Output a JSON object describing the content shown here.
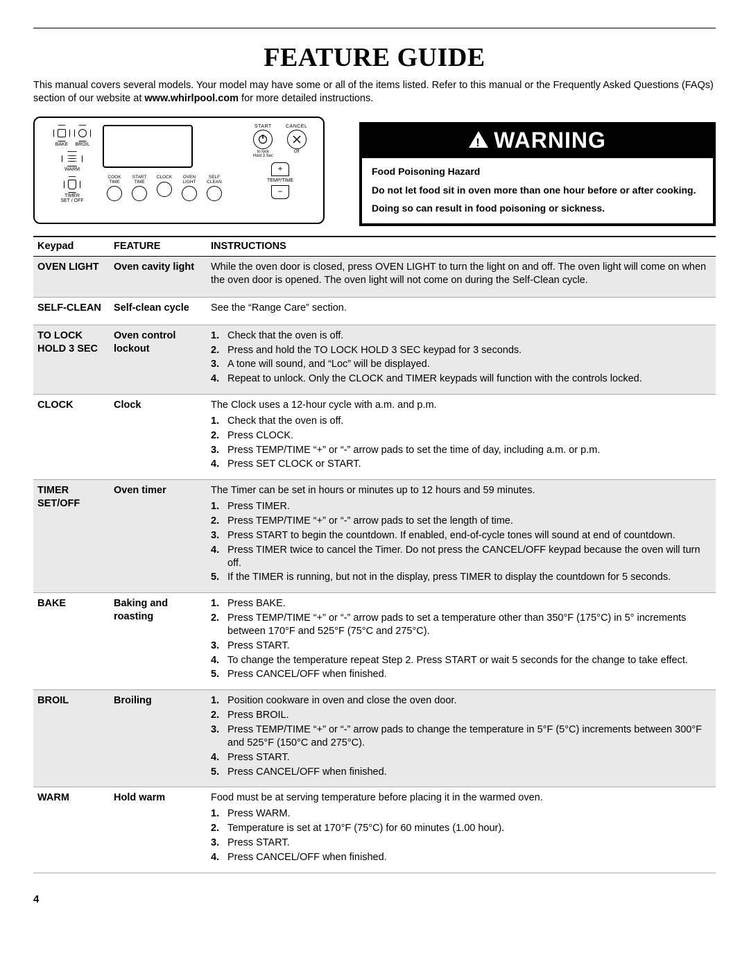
{
  "title": "FEATURE GUIDE",
  "intro_before": "This manual covers several models. Your model may have some or all of the items listed. Refer to this manual or the Frequently Asked Questions (FAQs) section of our website at ",
  "intro_url": "www.whirlpool.com",
  "intro_after": " for more detailed instructions.",
  "panel": {
    "bake": "BAKE",
    "broil": "BROIL",
    "warm": "WARM",
    "timer": "TIMER\nSET / OFF",
    "mids": [
      "COOK\nTIME",
      "START\nTIME",
      "CLOCK",
      "OVEN\nLIGHT",
      "SELF\nCLEAN"
    ],
    "start": "START",
    "cancel": "CANCEL",
    "off": "Off",
    "lock_hint": "to lock\nHold 3 Sec",
    "temptime": "TEMP/TIME"
  },
  "warning": {
    "header": "WARNING",
    "hazard": "Food Poisoning Hazard",
    "line1": "Do not let food sit in oven more than one hour before or after cooking.",
    "line2": "Doing so can result in food poisoning or sickness."
  },
  "thead": {
    "c1": "Keypad",
    "c2": "FEATURE",
    "c3": "INSTRUCTIONS"
  },
  "rows": [
    {
      "shade": true,
      "keypad": "OVEN LIGHT",
      "feature": "Oven cavity light",
      "pre": "While the oven door is closed, press OVEN LIGHT to turn the light on and off. The oven light will come on when the oven door is opened. The oven light will not come on during the Self-Clean cycle.",
      "steps": []
    },
    {
      "shade": false,
      "keypad": "SELF-CLEAN",
      "feature": "Self-clean cycle",
      "pre": "See the “Range Care” section.",
      "steps": []
    },
    {
      "shade": true,
      "keypad": "TO LOCK HOLD 3 SEC",
      "feature": "Oven control lockout",
      "pre": "",
      "steps": [
        "Check that the oven is off.",
        "Press and hold the TO LOCK HOLD 3 SEC keypad for 3 seconds.",
        "A tone will sound, and “Loc” will be displayed.",
        "Repeat to unlock. Only the CLOCK and TIMER keypads will function with the controls locked."
      ]
    },
    {
      "shade": false,
      "keypad": "CLOCK",
      "feature": "Clock",
      "pre": "The Clock uses a 12-hour cycle with a.m. and p.m.",
      "steps": [
        "Check that the oven is off.",
        "Press CLOCK.",
        "Press TEMP/TIME “+” or “-” arrow pads to set the time of day, including a.m. or p.m.",
        "Press SET CLOCK or START."
      ]
    },
    {
      "shade": true,
      "keypad": "TIMER SET/OFF",
      "feature": "Oven timer",
      "pre": "The Timer can be set in hours or minutes up to 12 hours and 59 minutes.",
      "steps": [
        "Press TIMER.",
        "Press TEMP/TIME “+” or “-” arrow pads to set the length of time.",
        "Press START to begin the countdown. If enabled, end-of-cycle tones will sound at end of countdown.",
        "Press TIMER twice to cancel the Timer. Do not press the CANCEL/OFF keypad because the oven will turn off.",
        "If the TIMER is running, but not in the display, press TIMER to display the countdown for 5 seconds."
      ]
    },
    {
      "shade": false,
      "keypad": "BAKE",
      "feature": "Baking and roasting",
      "pre": "",
      "steps": [
        "Press BAKE.",
        "Press TEMP/TIME “+” or “-” arrow pads to set a temperature other than 350°F (175°C) in 5° increments between 170°F and 525°F (75°C and 275°C).",
        "Press START.",
        "To change the temperature repeat Step 2. Press START or wait 5 seconds for the change to take effect.",
        "Press CANCEL/OFF when finished."
      ]
    },
    {
      "shade": true,
      "keypad": "BROIL",
      "feature": "Broiling",
      "pre": "",
      "steps": [
        "Position cookware in oven and close the oven door.",
        "Press BROIL.",
        "Press TEMP/TIME “+” or “-” arrow pads to change the temperature in 5°F (5°C) increments between 300°F and 525°F (150°C and 275°C).",
        "Press START.",
        "Press CANCEL/OFF when finished."
      ]
    },
    {
      "shade": false,
      "keypad": "WARM",
      "feature": "Hold warm",
      "pre": "Food must be at serving temperature before placing it in the warmed oven.",
      "steps": [
        "Press WARM.",
        "Temperature is set at 170°F (75°C) for 60 minutes (1.00 hour).",
        "Press START.",
        "Press CANCEL/OFF when finished."
      ]
    }
  ],
  "pagenum": "4"
}
